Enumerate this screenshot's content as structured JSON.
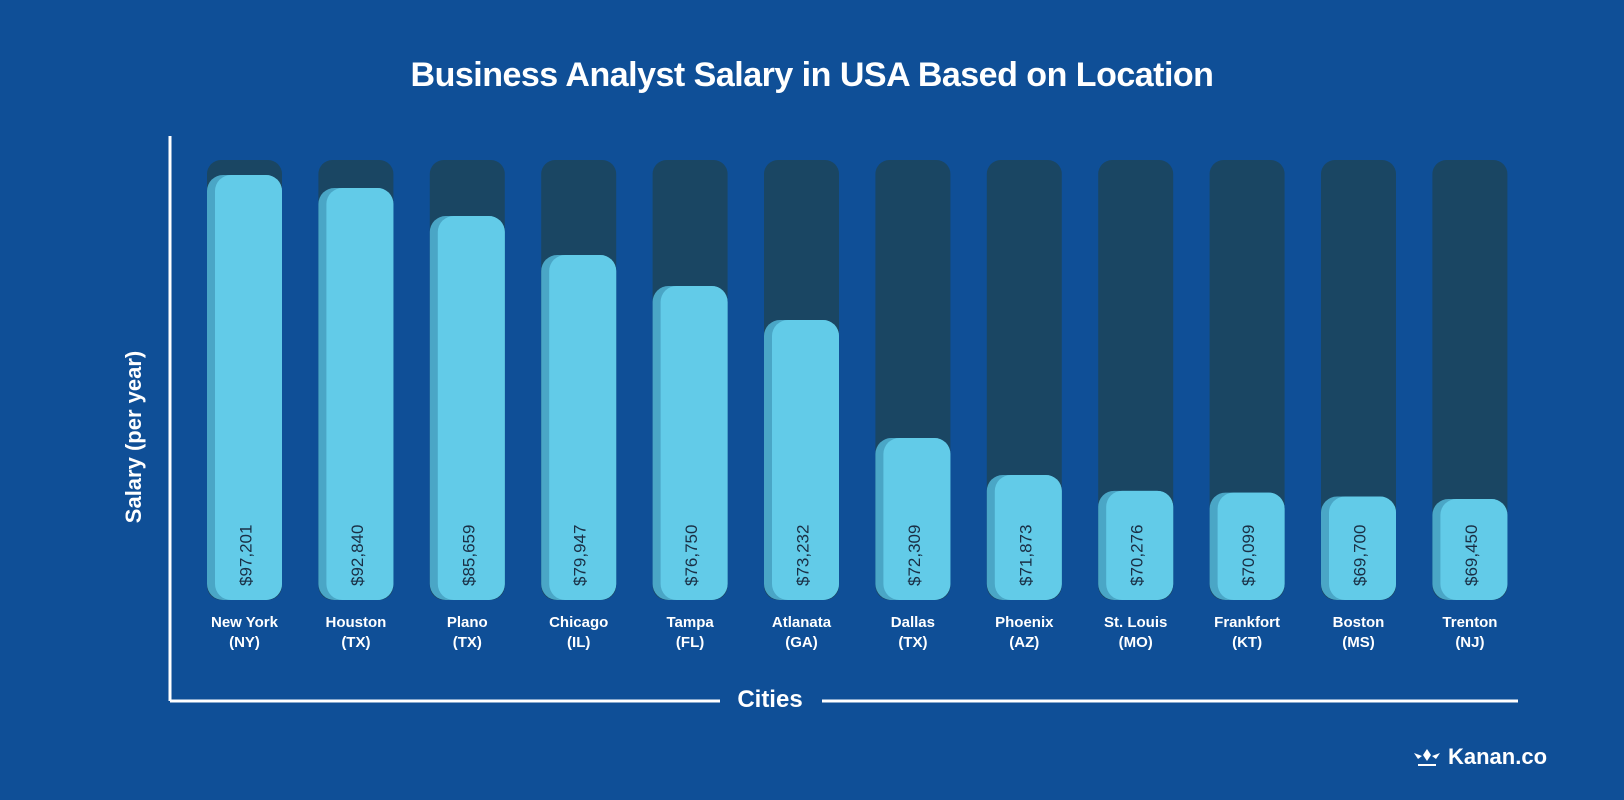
{
  "chart_data": {
    "type": "bar",
    "title": "Business Analyst Salary in USA Based on Location",
    "xlabel": "Cities",
    "ylabel": "Salary (per year)",
    "categories": [
      [
        "New York",
        "(NY)"
      ],
      [
        "Houston",
        "(TX)"
      ],
      [
        "Plano",
        "(TX)"
      ],
      [
        "Chicago",
        "(IL)"
      ],
      [
        "Tampa",
        "(FL)"
      ],
      [
        "Atlanata",
        "(GA)"
      ],
      [
        "Dallas",
        "(TX)"
      ],
      [
        "Phoenix",
        "(AZ)"
      ],
      [
        "St. Louis",
        "(MO)"
      ],
      [
        "Frankfort",
        "(KT)"
      ],
      [
        "Boston",
        "(MS)"
      ],
      [
        "Trenton",
        "(NJ)"
      ]
    ],
    "values": [
      97201,
      92840,
      85659,
      79947,
      76750,
      73232,
      72309,
      71873,
      70276,
      70099,
      69700,
      69450
    ],
    "data_labels": [
      "$97,201",
      "$92,840",
      "$85,659",
      "$79,947",
      "$76,750",
      "$73,232",
      "$72,309",
      "$71,873",
      "$70,276",
      "$70,099",
      "$69,700",
      "$69,450"
    ],
    "grid": false,
    "colors": {
      "background": "#0f4f97",
      "bar": "#62cbe8",
      "bar_side": "#4aa6c6",
      "track": "#1a4663",
      "text": "#ffffff",
      "label_text": "#1a2f45"
    }
  },
  "brand": {
    "name": "Kanan.co",
    "logo_icon": "kanan-logo-icon"
  }
}
